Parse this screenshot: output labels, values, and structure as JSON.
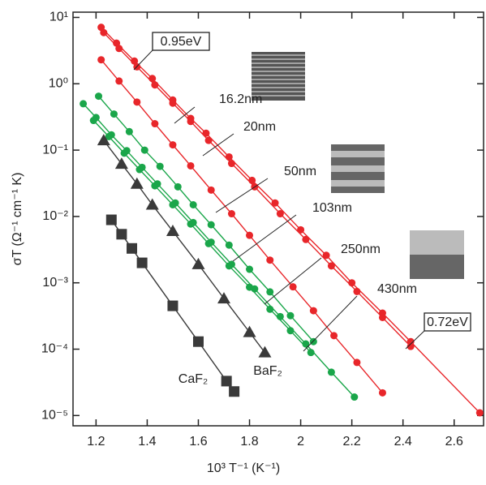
{
  "chart_data": {
    "type": "line",
    "x_label": "10³ T⁻¹ (K⁻¹)",
    "y_label": "σT (Ω⁻¹ cm⁻¹ K)",
    "log_y": true,
    "xlim": [
      1.11,
      2.715
    ],
    "ylim": [
      7e-06,
      12
    ],
    "xticks": [
      1.2,
      1.4,
      1.6,
      1.8,
      2.0,
      2.2,
      2.4,
      2.6
    ],
    "yticks": [
      {
        "value": 10,
        "label": "10¹"
      },
      {
        "value": 1,
        "label": "10⁰"
      },
      {
        "value": 0.1,
        "label": "10⁻¹"
      },
      {
        "value": 0.01,
        "label": "10⁻²"
      },
      {
        "value": 0.001,
        "label": "10⁻³"
      },
      {
        "value": 0.0001,
        "label": "10⁻⁴"
      },
      {
        "value": 1e-05,
        "label": "10⁻⁵"
      }
    ],
    "series": [
      {
        "name": "16.2nm",
        "color": "#e8262a",
        "marker": "circle",
        "x": [
          1.22,
          1.28,
          1.35,
          1.42,
          1.5,
          1.57,
          1.63,
          1.72,
          1.81,
          1.9,
          2.0,
          2.1,
          2.2,
          2.32,
          2.43,
          2.7
        ],
        "values": [
          7.1,
          4.1,
          2.2,
          1.2,
          0.57,
          0.3,
          0.18,
          0.079,
          0.035,
          0.016,
          0.0063,
          0.0026,
          0.001,
          0.00035,
          0.00013,
          1.1e-05
        ]
      },
      {
        "name": "20nm",
        "color": "#e8262a",
        "marker": "circle",
        "x": [
          1.23,
          1.29,
          1.36,
          1.43,
          1.5,
          1.57,
          1.64,
          1.73,
          1.82,
          1.92,
          2.02,
          2.12,
          2.22,
          2.32,
          2.43
        ],
        "values": [
          5.9,
          3.4,
          1.8,
          0.96,
          0.51,
          0.27,
          0.14,
          0.063,
          0.028,
          0.011,
          0.0045,
          0.0018,
          0.00074,
          0.0003,
          0.00011
        ]
      },
      {
        "name": "50nm",
        "color": "#e8262a",
        "marker": "circle",
        "x": [
          1.22,
          1.29,
          1.36,
          1.43,
          1.5,
          1.57,
          1.65,
          1.73,
          1.8,
          1.88,
          1.97,
          2.05,
          2.13,
          2.22,
          2.32
        ],
        "values": [
          2.3,
          1.1,
          0.53,
          0.25,
          0.12,
          0.058,
          0.025,
          0.011,
          0.0052,
          0.0022,
          0.00087,
          0.00038,
          0.00016,
          6.3e-05,
          2.2e-05
        ]
      },
      {
        "name": "103nm",
        "color": "#1aa64a",
        "marker": "circle",
        "x": [
          1.21,
          1.27,
          1.33,
          1.39,
          1.45,
          1.52,
          1.58,
          1.65,
          1.72,
          1.8,
          1.88,
          1.96,
          2.05
        ],
        "values": [
          0.65,
          0.35,
          0.19,
          0.1,
          0.057,
          0.028,
          0.015,
          0.0075,
          0.0037,
          0.0016,
          0.00073,
          0.00032,
          0.00013
        ]
      },
      {
        "name": "250nm",
        "color": "#1aa64a",
        "marker": "circle",
        "x": [
          1.15,
          1.2,
          1.26,
          1.32,
          1.38,
          1.44,
          1.51,
          1.58,
          1.65,
          1.73,
          1.82,
          1.92,
          2.02,
          2.12,
          2.21
        ],
        "values": [
          0.5,
          0.31,
          0.17,
          0.098,
          0.055,
          0.031,
          0.016,
          0.0081,
          0.0041,
          0.0019,
          0.00081,
          0.00031,
          0.00012,
          4.5e-05,
          1.9e-05
        ]
      },
      {
        "name": "430nm",
        "color": "#1aa64a",
        "marker": "circle",
        "x": [
          1.19,
          1.25,
          1.31,
          1.37,
          1.43,
          1.5,
          1.57,
          1.64,
          1.72,
          1.8,
          1.88,
          1.96,
          2.04
        ],
        "values": [
          0.28,
          0.16,
          0.09,
          0.051,
          0.029,
          0.015,
          0.0077,
          0.0039,
          0.0018,
          0.00086,
          0.0004,
          0.00019,
          8.9e-05
        ]
      },
      {
        "name": "BaF₂",
        "color": "#3a3a3a",
        "marker": "triangle",
        "x": [
          1.23,
          1.3,
          1.36,
          1.42,
          1.5,
          1.6,
          1.7,
          1.8,
          1.86
        ],
        "values": [
          0.14,
          0.062,
          0.031,
          0.015,
          0.006,
          0.0019,
          0.00058,
          0.00018,
          8.9e-05
        ]
      },
      {
        "name": "CaF₂",
        "color": "#3a3a3a",
        "marker": "square",
        "x": [
          1.26,
          1.3,
          1.34,
          1.38,
          1.5,
          1.6,
          1.71,
          1.74
        ],
        "values": [
          0.0089,
          0.0054,
          0.0033,
          0.002,
          0.00045,
          0.00013,
          3.3e-05,
          2.3e-05
        ]
      }
    ],
    "annotations": [
      "0.95eV",
      "0.72eV"
    ]
  }
}
